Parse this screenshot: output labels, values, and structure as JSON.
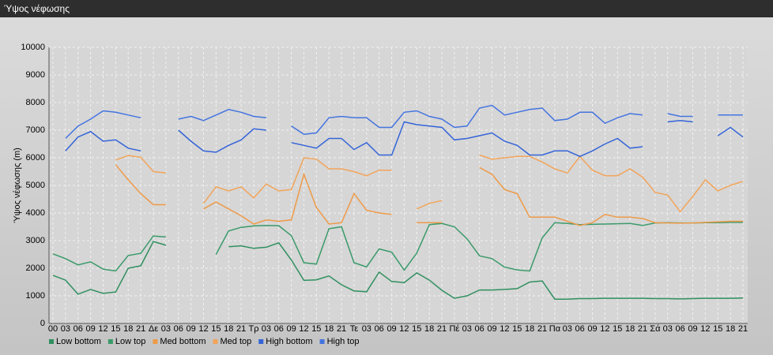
{
  "chart_data": {
    "type": "line",
    "title": "Ύψος νέφωσης",
    "y_label": "Ύψος νέφωσης (m)",
    "categories": [
      "00",
      "03",
      "06",
      "09",
      "12",
      "15",
      "18",
      "21",
      "Δε",
      "03",
      "06",
      "09",
      "12",
      "15",
      "18",
      "21",
      "Τρ",
      "03",
      "06",
      "09",
      "12",
      "15",
      "18",
      "21",
      "Τε",
      "03",
      "06",
      "09",
      "12",
      "15",
      "18",
      "21",
      "Πέ",
      "03",
      "06",
      "09",
      "12",
      "15",
      "18",
      "21",
      "Πα",
      "03",
      "06",
      "09",
      "12",
      "15",
      "18",
      "21",
      "Σά",
      "03",
      "06",
      "09",
      "12",
      "15",
      "18",
      "21"
    ],
    "ylim": [
      0,
      10000
    ],
    "yticks": [
      0,
      1000,
      2000,
      3000,
      4000,
      5000,
      6000,
      7000,
      8000,
      9000,
      10000
    ],
    "grid": true,
    "series": [
      {
        "name": "Low bottom",
        "color": "#2f8f5f",
        "values": [
          1740,
          1570,
          1060,
          1230,
          1090,
          1140,
          2000,
          2090,
          2970,
          2830,
          null,
          null,
          null,
          null,
          2780,
          2810,
          2720,
          2760,
          2920,
          2300,
          1560,
          1580,
          1720,
          1400,
          1180,
          1150,
          1860,
          1520,
          1480,
          1830,
          1570,
          1200,
          910,
          1000,
          1210,
          1210,
          1230,
          1260,
          1500,
          1540,
          880,
          880,
          900,
          900,
          910,
          910,
          910,
          910,
          900,
          900,
          890,
          900,
          910,
          910,
          910,
          920
        ]
      },
      {
        "name": "Low top",
        "color": "#3a9a6a",
        "values": [
          2520,
          2350,
          2120,
          2230,
          1970,
          1900,
          2460,
          2540,
          3170,
          3130,
          null,
          null,
          null,
          2500,
          3350,
          3480,
          3530,
          3550,
          3540,
          3180,
          2200,
          2150,
          3430,
          3500,
          2200,
          2050,
          2700,
          2580,
          1930,
          2550,
          3580,
          3620,
          3500,
          3070,
          2450,
          2350,
          2040,
          1940,
          1900,
          3100,
          3650,
          3620,
          3580,
          3590,
          3600,
          3610,
          3620,
          3550,
          3640,
          3650,
          3640,
          3640,
          3650,
          3650,
          3660,
          3660
        ]
      },
      {
        "name": "Med bottom",
        "color": "#ee9a48",
        "values": [
          null,
          null,
          null,
          null,
          null,
          5750,
          5200,
          4700,
          4300,
          4300,
          null,
          null,
          4150,
          4400,
          4150,
          3900,
          3600,
          3750,
          3700,
          3750,
          5400,
          4200,
          3600,
          3650,
          4700,
          4100,
          4000,
          3950,
          null,
          3650,
          3650,
          3650,
          null,
          null,
          5650,
          5400,
          4850,
          4700,
          3850,
          3850,
          3850,
          3700,
          3550,
          3650,
          3950,
          3850,
          3850,
          3800,
          3650,
          3640,
          3630,
          3640,
          3660,
          3680,
          3700,
          3700
        ]
      },
      {
        "name": "Med top",
        "color": "#f2a45a",
        "values": [
          null,
          null,
          null,
          null,
          null,
          5920,
          6080,
          6020,
          5500,
          5450,
          null,
          null,
          4350,
          4950,
          4800,
          4950,
          4550,
          5050,
          4800,
          4850,
          6000,
          5950,
          5600,
          5600,
          5500,
          5350,
          5550,
          5550,
          null,
          4150,
          4350,
          4450,
          null,
          null,
          6100,
          5950,
          6000,
          6050,
          6050,
          5850,
          5600,
          5450,
          6050,
          5550,
          5350,
          5350,
          5600,
          5300,
          4750,
          4650,
          4050,
          4600,
          5200,
          4800,
          5000,
          5150
        ]
      },
      {
        "name": "High bottom",
        "color": "#3464d8",
        "values": [
          null,
          6250,
          6750,
          6950,
          6600,
          6650,
          6350,
          6250,
          null,
          null,
          7000,
          6600,
          6250,
          6200,
          6450,
          6650,
          7050,
          7000,
          null,
          6550,
          6450,
          6350,
          6700,
          6700,
          6300,
          6550,
          6100,
          6100,
          7300,
          7200,
          7150,
          7100,
          6650,
          6700,
          6800,
          6900,
          6600,
          6450,
          6100,
          6100,
          6250,
          6250,
          6050,
          6250,
          6500,
          6700,
          6350,
          6400,
          null,
          7300,
          7350,
          7300,
          null,
          6800,
          7100,
          6750
        ]
      },
      {
        "name": "High top",
        "color": "#4474e0",
        "values": [
          null,
          6700,
          7150,
          7400,
          7700,
          7650,
          7550,
          7450,
          null,
          null,
          7400,
          7500,
          7350,
          7550,
          7750,
          7650,
          7500,
          7450,
          null,
          7150,
          6850,
          6900,
          7450,
          7500,
          7450,
          7450,
          7100,
          7100,
          7650,
          7700,
          7500,
          7400,
          7100,
          7150,
          7800,
          7900,
          7550,
          7650,
          7750,
          7800,
          7350,
          7400,
          7650,
          7650,
          7250,
          7450,
          7600,
          7550,
          null,
          7600,
          7500,
          7500,
          null,
          7550,
          7550,
          7550
        ]
      }
    ]
  }
}
